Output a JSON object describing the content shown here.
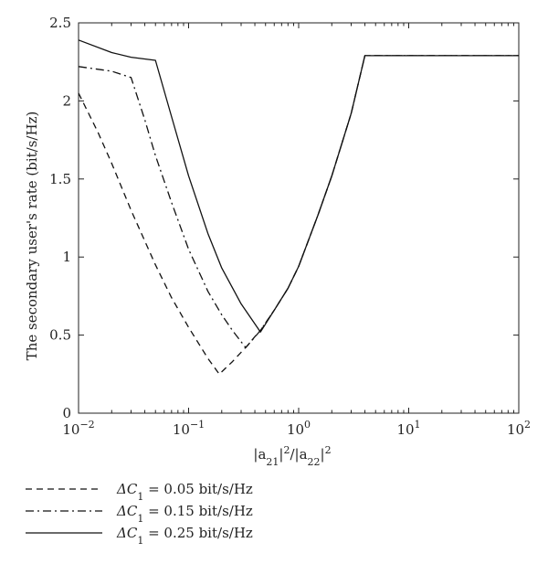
{
  "chart_data": {
    "type": "line",
    "title": "",
    "xlabel": "|a21|2/|a22|2",
    "xlabel_parts": {
      "open": "|a",
      "sub1": "21",
      "mid": "|",
      "sup1": "2",
      "slash": "/|a",
      "sub2": "22",
      "mid2": "|",
      "sup2": "2"
    },
    "ylabel": "The secondary user's rate (bit/s/Hz)",
    "xscale": "log",
    "xlim": [
      0.01,
      100
    ],
    "ylim": [
      0,
      2.5
    ],
    "x_ticks": [
      {
        "value": 0.01,
        "base": "10",
        "exp": "−2"
      },
      {
        "value": 0.1,
        "base": "10",
        "exp": "−1"
      },
      {
        "value": 1,
        "base": "10",
        "exp": "0"
      },
      {
        "value": 10,
        "base": "10",
        "exp": "1"
      },
      {
        "value": 100,
        "base": "10",
        "exp": "2"
      }
    ],
    "y_ticks": [
      {
        "value": 0,
        "label": "0"
      },
      {
        "value": 0.5,
        "label": "0.5"
      },
      {
        "value": 1,
        "label": "1"
      },
      {
        "value": 1.5,
        "label": "1.5"
      },
      {
        "value": 2,
        "label": "2"
      },
      {
        "value": 2.5,
        "label": "2.5"
      }
    ],
    "grid": false,
    "legend_position": "below-left",
    "series": [
      {
        "name": "ΔC1 = 0.05 bit/s/Hz",
        "name_parts": {
          "delta": "ΔC",
          "sub": "1",
          "rest": " = 0.05 bit/s/Hz"
        },
        "style": "dashed",
        "x": [
          0.01,
          0.015,
          0.02,
          0.03,
          0.05,
          0.07,
          0.1,
          0.15,
          0.19,
          0.25,
          0.3,
          0.35,
          0.4,
          0.45,
          0.6,
          0.8,
          1,
          1.5,
          2,
          3,
          4,
          10,
          100
        ],
        "y": [
          2.05,
          1.8,
          1.6,
          1.3,
          0.95,
          0.74,
          0.55,
          0.35,
          0.25,
          0.33,
          0.39,
          0.44,
          0.49,
          0.53,
          0.66,
          0.8,
          0.94,
          1.27,
          1.52,
          1.92,
          2.29,
          2.29,
          2.29
        ]
      },
      {
        "name": "ΔC1 = 0.15 bit/s/Hz",
        "name_parts": {
          "delta": "ΔC",
          "sub": "1",
          "rest": " = 0.15 bit/s/Hz"
        },
        "style": "dashdot",
        "x": [
          0.01,
          0.02,
          0.03,
          0.04,
          0.05,
          0.07,
          0.1,
          0.15,
          0.2,
          0.25,
          0.33,
          0.45,
          0.6,
          0.8,
          1,
          1.5,
          2,
          3,
          4,
          10,
          100
        ],
        "y": [
          2.22,
          2.19,
          2.15,
          1.88,
          1.65,
          1.35,
          1.05,
          0.78,
          0.63,
          0.53,
          0.42,
          0.53,
          0.66,
          0.8,
          0.94,
          1.27,
          1.52,
          1.92,
          2.29,
          2.29,
          2.29
        ]
      },
      {
        "name": "ΔC1 = 0.25 bit/s/Hz",
        "name_parts": {
          "delta": "ΔC",
          "sub": "1",
          "rest": " = 0.25 bit/s/Hz"
        },
        "style": "solid",
        "x": [
          0.01,
          0.02,
          0.03,
          0.05,
          0.07,
          0.1,
          0.15,
          0.2,
          0.3,
          0.45,
          0.6,
          0.8,
          1,
          1.5,
          2,
          3,
          4,
          10,
          100
        ],
        "y": [
          2.39,
          2.31,
          2.28,
          2.26,
          1.9,
          1.52,
          1.15,
          0.93,
          0.7,
          0.52,
          0.66,
          0.8,
          0.94,
          1.27,
          1.52,
          1.92,
          2.29,
          2.29,
          2.29
        ]
      }
    ]
  }
}
